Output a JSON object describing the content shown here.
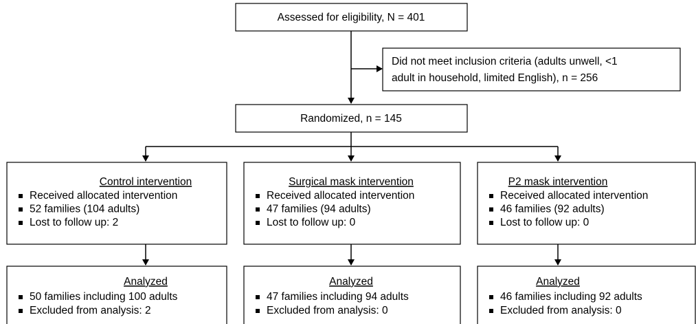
{
  "assessed": {
    "label": "Assessed for eligibility, N = 401"
  },
  "excluded": {
    "lines": [
      "Did not meet inclusion criteria (adults unwell, <1",
      "adult in household, limited English), n = 256"
    ]
  },
  "randomized": {
    "label": "Randomized, n = 145"
  },
  "arms": [
    {
      "title": "Control intervention",
      "items": [
        "Received allocated intervention",
        "52 families (104 adults)",
        "Lost to follow up: 2"
      ]
    },
    {
      "title": "Surgical mask intervention",
      "items": [
        "Received allocated intervention",
        "47 families (94 adults)",
        "Lost to follow up: 0"
      ]
    },
    {
      "title": "P2 mask intervention",
      "items": [
        "Received allocated intervention",
        "46 families (92 adults)",
        "Lost to follow up: 0"
      ]
    }
  ],
  "analyzed": [
    {
      "title": "Analyzed",
      "items": [
        "50 families including 100 adults",
        "Excluded from analysis: 2"
      ]
    },
    {
      "title": "Analyzed",
      "items": [
        "47 families including 94 adults",
        "Excluded from analysis: 0"
      ]
    },
    {
      "title": "Analyzed",
      "items": [
        "46 families including 92 adults",
        "Excluded from analysis: 0"
      ]
    }
  ]
}
